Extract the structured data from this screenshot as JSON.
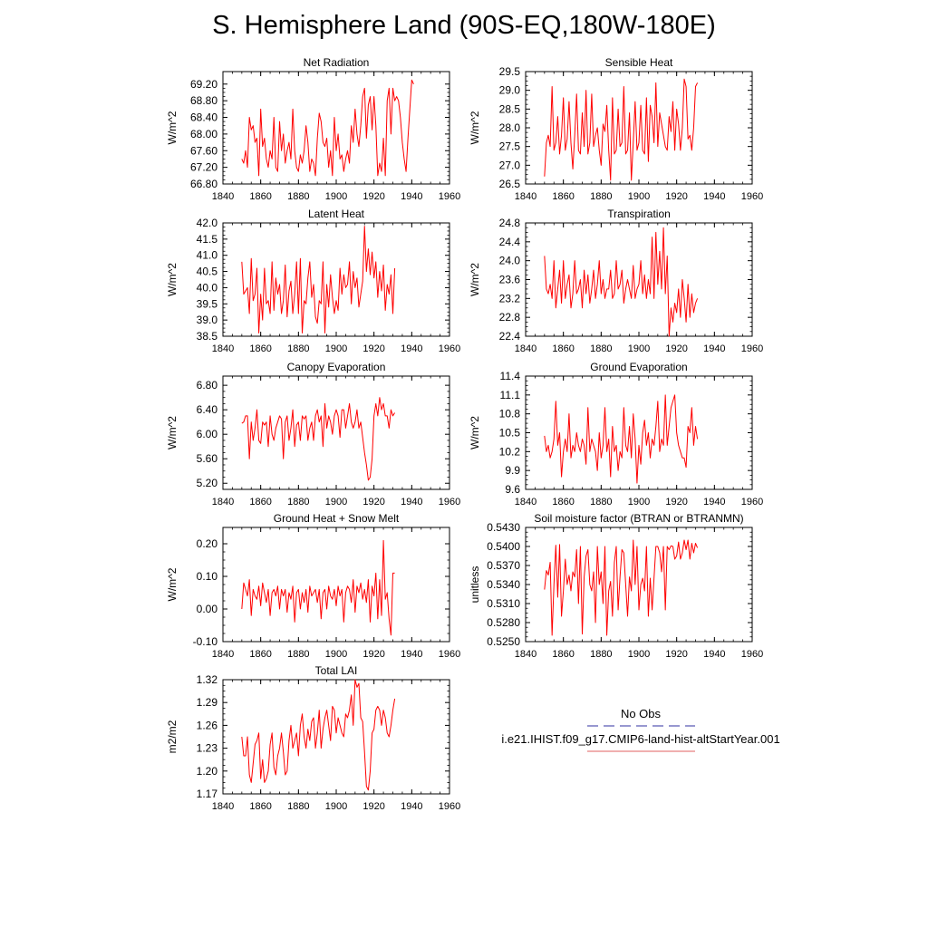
{
  "figure": {
    "title": "S. Hemisphere Land (90S-EQ,180W-180E)"
  },
  "legend": {
    "entries": [
      {
        "label": "No Obs",
        "color": "#3030a0",
        "dashed": true
      },
      {
        "label": "i.e21.IHIST.f09_g17.CMIP6-land-hist-altStartYear.001",
        "color": "#e06060",
        "dashed": false
      }
    ]
  },
  "chart_data": [
    {
      "type": "line",
      "title": "Net Radiation",
      "xlabel": "",
      "ylabel": "W/m^2",
      "xlim": [
        1840,
        1960
      ],
      "xticks": [
        1840,
        1860,
        1880,
        1900,
        1920,
        1940,
        1960
      ],
      "ylim": [
        66.8,
        69.5
      ],
      "yticks": [
        66.8,
        67.2,
        67.6,
        68.0,
        68.4,
        68.8,
        69.2
      ],
      "ydec": 2,
      "x_start": 1850,
      "x_step": 1,
      "series": [
        {
          "color": "#ff0000",
          "values": [
            67.4,
            67.3,
            67.6,
            67.2,
            68.4,
            68.1,
            68.2,
            67.8,
            67.9,
            67.0,
            68.6,
            67.7,
            67.9,
            67.4,
            67.2,
            67.6,
            67.4,
            68.4,
            67.2,
            67.1,
            68.3,
            67.6,
            68.0,
            67.3,
            67.6,
            67.8,
            67.4,
            68.6,
            67.6,
            67.2,
            67.1,
            67.5,
            67.3,
            67.6,
            68.2,
            67.8,
            67.1,
            67.4,
            67.3,
            67.0,
            67.9,
            68.5,
            68.3,
            67.8,
            67.7,
            67.9,
            67.2,
            67.6,
            67.0,
            68.4,
            67.6,
            68.0,
            67.4,
            67.5,
            67.1,
            67.4,
            67.6,
            67.3,
            68.2,
            67.8,
            68.6,
            68.0,
            67.7,
            68.2,
            68.9,
            69.1,
            67.9,
            68.7,
            68.9,
            68.1,
            68.9,
            68.2,
            67.0,
            67.3,
            67.1,
            67.9,
            67.0,
            68.8,
            69.1,
            68.0,
            69.1,
            68.8,
            68.9,
            68.8,
            68.4,
            67.8,
            67.4,
            67.1,
            67.9,
            68.6,
            69.3,
            69.2
          ]
        }
      ]
    },
    {
      "type": "line",
      "title": "Sensible Heat",
      "xlabel": "",
      "ylabel": "W/m^2",
      "xlim": [
        1840,
        1960
      ],
      "xticks": [
        1840,
        1860,
        1880,
        1900,
        1920,
        1940,
        1960
      ],
      "ylim": [
        26.5,
        29.5
      ],
      "yticks": [
        26.5,
        27.0,
        27.5,
        28.0,
        28.5,
        29.0,
        29.5
      ],
      "ydec": 1,
      "x_start": 1850,
      "x_step": 1,
      "series": [
        {
          "color": "#ff0000",
          "values": [
            26.7,
            27.6,
            27.8,
            27.5,
            29.1,
            27.4,
            27.6,
            28.3,
            27.3,
            27.8,
            28.8,
            27.4,
            27.7,
            28.7,
            27.6,
            26.9,
            27.8,
            28.9,
            27.4,
            27.3,
            28.4,
            27.5,
            29.0,
            27.3,
            27.6,
            28.9,
            27.5,
            27.8,
            28.0,
            27.4,
            27.0,
            28.1,
            27.9,
            28.6,
            27.4,
            26.6,
            28.8,
            27.3,
            27.4,
            28.5,
            27.5,
            27.6,
            29.1,
            27.3,
            27.4,
            28.4,
            26.6,
            27.6,
            28.7,
            27.4,
            27.6,
            28.6,
            27.4,
            27.3,
            28.8,
            27.1,
            28.6,
            28.3,
            27.6,
            29.2,
            27.5,
            28.4,
            28.1,
            27.8,
            27.5,
            27.4,
            28.3,
            27.9,
            28.7,
            27.4,
            28.5,
            28.1,
            27.4,
            28.0,
            29.3,
            29.1,
            27.7,
            27.8,
            27.4,
            28.0,
            29.1,
            29.2
          ]
        }
      ]
    },
    {
      "type": "line",
      "title": "Latent Heat",
      "xlabel": "",
      "ylabel": "W/m^2",
      "xlim": [
        1840,
        1960
      ],
      "xticks": [
        1840,
        1860,
        1880,
        1900,
        1920,
        1940,
        1960
      ],
      "ylim": [
        38.5,
        42.0
      ],
      "yticks": [
        38.5,
        39.0,
        39.5,
        40.0,
        40.5,
        41.0,
        41.5,
        42.0
      ],
      "ydec": 1,
      "x_start": 1850,
      "x_step": 1,
      "series": [
        {
          "color": "#ff0000",
          "values": [
            40.8,
            39.8,
            39.9,
            40.0,
            39.2,
            40.9,
            39.6,
            39.8,
            40.6,
            38.6,
            39.8,
            39.0,
            40.6,
            39.5,
            39.6,
            39.2,
            40.8,
            39.3,
            40.3,
            39.8,
            40.1,
            39.2,
            39.6,
            40.7,
            39.1,
            39.9,
            40.2,
            39.2,
            39.8,
            40.8,
            39.2,
            40.9,
            38.6,
            39.6,
            39.5,
            40.3,
            40.8,
            39.7,
            40.1,
            39.1,
            38.9,
            39.6,
            39.5,
            40.8,
            38.6,
            40.1,
            39.4,
            40.4,
            39.7,
            39.2,
            39.6,
            39.3,
            40.6,
            39.8,
            40.4,
            40.0,
            40.1,
            40.8,
            39.5,
            40.5,
            40.0,
            40.3,
            39.4,
            39.8,
            40.2,
            41.9,
            40.5,
            41.2,
            40.4,
            41.1,
            40.3,
            40.8,
            39.7,
            40.5,
            39.9,
            40.7,
            39.3,
            40.1,
            39.8,
            40.4,
            39.2,
            40.6
          ]
        }
      ]
    },
    {
      "type": "line",
      "title": "Transpiration",
      "xlabel": "",
      "ylabel": "W/m^2",
      "xlim": [
        1840,
        1960
      ],
      "xticks": [
        1840,
        1860,
        1880,
        1900,
        1920,
        1940,
        1960
      ],
      "ylim": [
        22.4,
        24.8
      ],
      "yticks": [
        22.4,
        22.8,
        23.2,
        23.6,
        24.0,
        24.4,
        24.8
      ],
      "ydec": 1,
      "x_start": 1850,
      "x_step": 1,
      "series": [
        {
          "color": "#ff0000",
          "values": [
            24.1,
            23.4,
            23.3,
            23.5,
            23.2,
            24.0,
            23.0,
            23.4,
            23.8,
            23.1,
            24.0,
            23.2,
            23.5,
            23.7,
            23.0,
            23.3,
            24.0,
            23.3,
            23.4,
            23.6,
            23.0,
            23.8,
            23.3,
            23.7,
            23.1,
            23.4,
            23.8,
            23.2,
            23.5,
            24.0,
            23.3,
            23.6,
            23.2,
            23.4,
            23.4,
            23.8,
            23.2,
            23.3,
            24.0,
            23.4,
            23.5,
            23.8,
            23.1,
            23.4,
            23.6,
            23.4,
            23.2,
            23.9,
            23.2,
            23.4,
            23.5,
            24.0,
            23.3,
            23.7,
            23.2,
            23.6,
            23.3,
            24.5,
            23.2,
            24.6,
            23.5,
            24.2,
            23.4,
            24.7,
            23.3,
            24.1,
            22.4,
            23.0,
            22.7,
            23.1,
            22.9,
            23.4,
            22.8,
            23.6,
            23.2,
            22.7,
            23.5,
            22.8,
            23.3,
            22.9,
            23.1,
            23.2
          ]
        }
      ]
    },
    {
      "type": "line",
      "title": "Canopy Evaporation",
      "xlabel": "",
      "ylabel": "W/m^2",
      "xlim": [
        1840,
        1960
      ],
      "xticks": [
        1840,
        1860,
        1880,
        1900,
        1920,
        1940,
        1960
      ],
      "ylim": [
        5.1,
        6.95
      ],
      "yticks": [
        5.2,
        5.6,
        6.0,
        6.4,
        6.8
      ],
      "ydec": 2,
      "x_start": 1850,
      "x_step": 1,
      "series": [
        {
          "color": "#ff0000",
          "values": [
            6.18,
            6.2,
            6.3,
            6.3,
            5.6,
            6.2,
            5.9,
            6.1,
            6.4,
            5.9,
            5.85,
            6.2,
            6.15,
            6.2,
            5.8,
            6.3,
            6.0,
            5.9,
            6.1,
            6.2,
            6.3,
            6.25,
            5.6,
            6.2,
            6.3,
            5.9,
            6.1,
            6.4,
            5.8,
            6.15,
            6.2,
            5.9,
            6.3,
            6.25,
            6.3,
            5.9,
            6.1,
            6.2,
            5.9,
            6.3,
            6.4,
            6.2,
            6.3,
            5.8,
            6.5,
            6.1,
            6.3,
            6.2,
            6.0,
            6.3,
            6.4,
            6.3,
            5.95,
            6.4,
            6.4,
            6.1,
            6.3,
            6.5,
            6.2,
            6.1,
            6.2,
            6.4,
            6.1,
            6.2,
            5.95,
            5.7,
            5.5,
            5.25,
            5.3,
            5.6,
            6.3,
            6.5,
            6.3,
            6.6,
            6.4,
            6.5,
            6.3,
            6.3,
            6.1,
            6.4,
            6.3,
            6.35
          ]
        }
      ]
    },
    {
      "type": "line",
      "title": "Ground Evaporation",
      "xlabel": "",
      "ylabel": "W/m^2",
      "xlim": [
        1840,
        1960
      ],
      "xticks": [
        1840,
        1860,
        1880,
        1900,
        1920,
        1940,
        1960
      ],
      "ylim": [
        9.6,
        11.4
      ],
      "yticks": [
        9.6,
        9.9,
        10.2,
        10.5,
        10.8,
        11.1,
        11.4
      ],
      "ydec": 1,
      "x_start": 1850,
      "x_step": 1,
      "series": [
        {
          "color": "#ff0000",
          "values": [
            10.45,
            10.2,
            10.3,
            10.1,
            10.2,
            10.4,
            11.0,
            10.3,
            10.5,
            9.8,
            10.2,
            10.4,
            10.2,
            10.8,
            10.1,
            10.3,
            10.2,
            10.5,
            10.3,
            10.2,
            10.4,
            10.3,
            10.0,
            10.9,
            10.2,
            10.4,
            10.3,
            10.2,
            9.9,
            10.5,
            10.1,
            10.3,
            10.9,
            10.2,
            10.4,
            9.8,
            10.6,
            10.2,
            10.3,
            9.9,
            10.2,
            10.1,
            10.9,
            10.3,
            10.2,
            10.6,
            10.1,
            10.8,
            10.4,
            9.7,
            10.3,
            10.0,
            10.5,
            10.7,
            10.3,
            10.5,
            10.1,
            10.4,
            10.3,
            10.6,
            11.0,
            10.2,
            10.4,
            10.3,
            11.1,
            10.3,
            10.6,
            10.9,
            11.0,
            11.1,
            10.5,
            10.3,
            10.2,
            10.1,
            10.1,
            9.95,
            10.6,
            10.5,
            10.9,
            10.3,
            10.6,
            10.4
          ]
        }
      ]
    },
    {
      "type": "line",
      "title": "Ground Heat + Snow Melt",
      "xlabel": "",
      "ylabel": "W/m^2",
      "xlim": [
        1840,
        1960
      ],
      "xticks": [
        1840,
        1860,
        1880,
        1900,
        1920,
        1940,
        1960
      ],
      "ylim": [
        -0.1,
        0.25
      ],
      "yticks": [
        -0.1,
        0.0,
        0.1,
        0.2
      ],
      "ydec": 2,
      "x_start": 1850,
      "x_step": 1,
      "series": [
        {
          "color": "#ff0000",
          "values": [
            0.0,
            0.08,
            0.06,
            0.04,
            0.09,
            -0.02,
            0.06,
            0.04,
            0.03,
            0.07,
            0.01,
            0.08,
            0.05,
            0.02,
            0.06,
            -0.02,
            0.05,
            0.06,
            0.04,
            0.07,
            0.0,
            0.06,
            0.04,
            0.06,
            -0.01,
            0.05,
            0.03,
            0.07,
            -0.04,
            0.05,
            0.06,
            0.0,
            0.05,
            0.02,
            0.06,
            -0.01,
            0.07,
            0.04,
            0.05,
            0.06,
            0.02,
            0.06,
            -0.03,
            0.05,
            0.06,
            0.0,
            0.07,
            0.04,
            0.03,
            0.06,
            0.01,
            0.07,
            0.04,
            0.06,
            -0.04,
            0.05,
            0.07,
            0.06,
            0.02,
            0.09,
            -0.01,
            0.07,
            0.05,
            0.08,
            0.03,
            0.06,
            0.02,
            0.09,
            -0.04,
            0.07,
            0.04,
            0.11,
            -0.03,
            0.09,
            -0.02,
            0.21,
            0.03,
            0.05,
            -0.03,
            -0.08,
            0.11,
            0.11
          ]
        }
      ]
    },
    {
      "type": "line",
      "title": "Soil moisture factor (BTRAN or BTRANMN)",
      "xlabel": "",
      "ylabel": "unitless",
      "xlim": [
        1840,
        1960
      ],
      "xticks": [
        1840,
        1860,
        1880,
        1900,
        1920,
        1940,
        1960
      ],
      "ylim": [
        0.525,
        0.543
      ],
      "yticks": [
        0.525,
        0.528,
        0.531,
        0.534,
        0.537,
        0.54,
        0.543
      ],
      "ydec": 4,
      "x_start": 1850,
      "x_step": 1,
      "series": [
        {
          "color": "#ff0000",
          "values": [
            0.5332,
            0.5362,
            0.5355,
            0.5375,
            0.526,
            0.534,
            0.5402,
            0.532,
            0.5403,
            0.529,
            0.533,
            0.538,
            0.534,
            0.5355,
            0.533,
            0.536,
            0.5352,
            0.5395,
            0.531,
            0.54,
            0.5262,
            0.5352,
            0.5385,
            0.5395,
            0.534,
            0.533,
            0.536,
            0.528,
            0.54,
            0.534,
            0.536,
            0.531,
            0.54,
            0.526,
            0.533,
            0.5345,
            0.529,
            0.5375,
            0.54,
            0.53,
            0.5352,
            0.5395,
            0.539,
            0.534,
            0.529,
            0.5352,
            0.533,
            0.541,
            0.534,
            0.54,
            0.53,
            0.534,
            0.535,
            0.533,
            0.54,
            0.529,
            0.535,
            0.53,
            0.535,
            0.54,
            0.54,
            0.539,
            0.536,
            0.54,
            0.53,
            0.54,
            0.5395,
            0.5401,
            0.54,
            0.538,
            0.5385,
            0.5407,
            0.538,
            0.539,
            0.541,
            0.5395,
            0.541,
            0.538,
            0.5405,
            0.539,
            0.5405,
            0.5398
          ]
        }
      ]
    },
    {
      "type": "line",
      "title": "Total LAI",
      "xlabel": "",
      "ylabel": "m2/m2",
      "xlim": [
        1840,
        1960
      ],
      "xticks": [
        1840,
        1860,
        1880,
        1900,
        1920,
        1940,
        1960
      ],
      "ylim": [
        1.17,
        1.32
      ],
      "yticks": [
        1.17,
        1.2,
        1.23,
        1.26,
        1.29,
        1.32
      ],
      "ydec": 2,
      "x_start": 1850,
      "x_step": 1,
      "series": [
        {
          "color": "#ff0000",
          "values": [
            1.245,
            1.22,
            1.22,
            1.245,
            1.195,
            1.185,
            1.21,
            1.235,
            1.24,
            1.25,
            1.19,
            1.215,
            1.185,
            1.19,
            1.2,
            1.235,
            1.25,
            1.205,
            1.195,
            1.22,
            1.23,
            1.25,
            1.225,
            1.195,
            1.2,
            1.24,
            1.26,
            1.23,
            1.24,
            1.25,
            1.22,
            1.26,
            1.275,
            1.245,
            1.23,
            1.255,
            1.24,
            1.265,
            1.27,
            1.23,
            1.25,
            1.28,
            1.23,
            1.255,
            1.27,
            1.28,
            1.26,
            1.24,
            1.285,
            1.28,
            1.25,
            1.27,
            1.26,
            1.25,
            1.245,
            1.275,
            1.27,
            1.28,
            1.3,
            1.26,
            1.32,
            1.31,
            1.315,
            1.27,
            1.265,
            1.225,
            1.18,
            1.175,
            1.2,
            1.25,
            1.255,
            1.28,
            1.285,
            1.28,
            1.26,
            1.28,
            1.27,
            1.25,
            1.245,
            1.26,
            1.28,
            1.295
          ]
        }
      ]
    }
  ]
}
